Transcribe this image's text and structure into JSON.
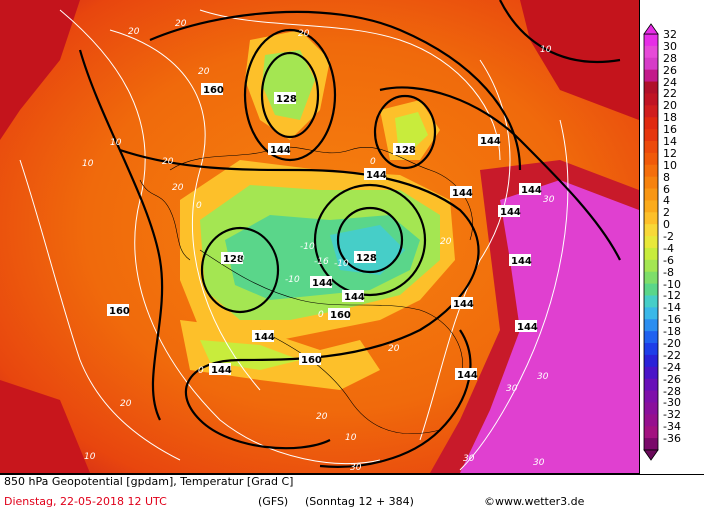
{
  "caption": {
    "title": "850 hPa Geopotential [gpdam], Temperatur [Grad C]",
    "date": "Dienstag, 22-05-2018  12 UTC",
    "model": "(GFS)",
    "run": "(Sonntag 12 + 384)",
    "copyright": "©www.wetter3.de"
  },
  "legend": {
    "labels": [
      "32",
      "30",
      "28",
      "26",
      "24",
      "22",
      "20",
      "18",
      "16",
      "14",
      "12",
      "10",
      "8",
      "6",
      "4",
      "2",
      "0",
      "-2",
      "-4",
      "-6",
      "-8",
      "-10",
      "-12",
      "-14",
      "-16",
      "-18",
      "-20",
      "-22",
      "-24",
      "-26",
      "-28",
      "-30",
      "-32",
      "-34",
      "-36"
    ],
    "colors": [
      "#e62ee6",
      "#e64ad8",
      "#d63cc8",
      "#c21a8a",
      "#b0102a",
      "#c01424",
      "#d01e1e",
      "#e02a10",
      "#e6360e",
      "#ec4a0c",
      "#f05a0a",
      "#f46e0c",
      "#f6820e",
      "#f89614",
      "#fbab1c",
      "#fdc02a",
      "#f8d838",
      "#e8e83a",
      "#c8ec3c",
      "#a4e652",
      "#7ede6a",
      "#5ad68a",
      "#46cec8",
      "#3ab8e8",
      "#2c8ef0",
      "#2062f0",
      "#1e3ee8",
      "#2a22d8",
      "#4a14c8",
      "#6810b8",
      "#7e10aa",
      "#8a109c",
      "#96108e",
      "#a21280",
      "#7a0a6a"
    ]
  },
  "map": {
    "geopotential_labels": [
      "128",
      "144",
      "160"
    ],
    "temperature_labels": [
      "-16",
      "-10",
      "0",
      "10",
      "20",
      "30"
    ]
  }
}
